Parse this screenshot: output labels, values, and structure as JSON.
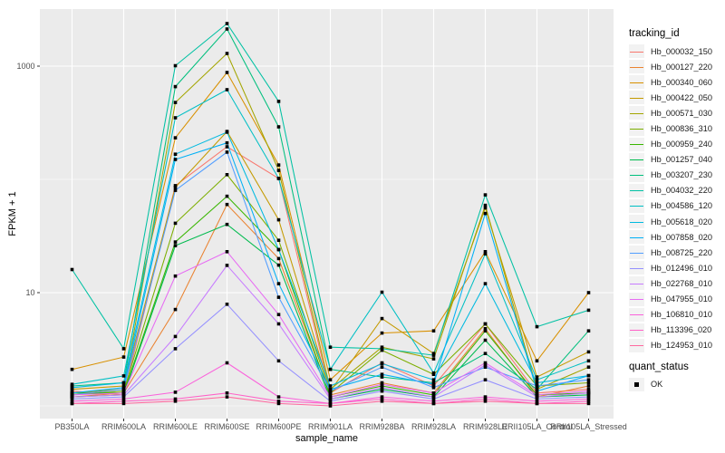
{
  "chart_data": {
    "type": "line",
    "xlabel": "sample_name",
    "ylabel": "FPKM + 1",
    "y_scale": "log10",
    "y_breaks": [
      {
        "label": "1000",
        "value": 1000
      },
      {
        "label": "10",
        "value": 10
      }
    ],
    "y_minor_breaks": [
      100,
      1
    ],
    "ylim": [
      0.77,
      3200
    ],
    "grid": true,
    "legend_position": "right",
    "categories": [
      "PB350LA",
      "RRIM600LA",
      "RRIM600LE",
      "RRIM600SE",
      "RRIM600PE",
      "RRIM901LA",
      "RRIM928BA",
      "RRIM928LA",
      "RRIM928LE",
      "RRII105LA_Control",
      "RRII105LA_Stressed"
    ],
    "series": [
      {
        "name": "Hb_000032_150",
        "color": "#F8766D",
        "values": [
          1.35,
          1.25,
          88,
          194,
          102,
          1.3,
          2.4,
          1.5,
          5.3,
          1.3,
          1.4
        ]
      },
      {
        "name": "Hb_000127_220",
        "color": "#EA8331",
        "values": [
          1.2,
          1.3,
          7.1,
          60,
          20,
          1.25,
          1.6,
          1.3,
          4.8,
          1.2,
          1.5
        ]
      },
      {
        "name": "Hb_000340_060",
        "color": "#D89000",
        "values": [
          2.1,
          2.7,
          233,
          879,
          134,
          1.7,
          4.4,
          4.6,
          23,
          2.5,
          10.0
        ]
      },
      {
        "name": "Hb_000422_050",
        "color": "#C49A00",
        "values": [
          1.4,
          1.5,
          85,
          265,
          44,
          1.35,
          5.9,
          2.9,
          56,
          1.8,
          3.0
        ]
      },
      {
        "name": "Hb_000571_030",
        "color": "#A3A500",
        "values": [
          1.3,
          1.4,
          478,
          1294,
          120,
          1.4,
          3.3,
          2.6,
          59,
          1.4,
          2.2
        ]
      },
      {
        "name": "Hb_000836_310",
        "color": "#7CAE00",
        "values": [
          1.25,
          1.35,
          41,
          110,
          29,
          1.3,
          3.1,
          1.9,
          5.3,
          1.5,
          1.6
        ]
      },
      {
        "name": "Hb_000959_240",
        "color": "#39B600",
        "values": [
          1.3,
          1.3,
          28,
          71,
          24,
          1.2,
          1.5,
          1.25,
          4.6,
          1.25,
          1.3
        ]
      },
      {
        "name": "Hb_001257_040",
        "color": "#00BB4E",
        "values": [
          1.2,
          1.25,
          26,
          40,
          17.5,
          1.15,
          1.4,
          1.2,
          3.8,
          1.2,
          1.25
        ]
      },
      {
        "name": "Hb_003207_230",
        "color": "#00BF7D",
        "values": [
          1.5,
          1.6,
          660,
          2128,
          291,
          2.1,
          1.8,
          1.6,
          2.9,
          1.4,
          4.6
        ]
      },
      {
        "name": "Hb_004032_220",
        "color": "#00C1A3",
        "values": [
          16.0,
          3.2,
          1010,
          2377,
          488,
          3.3,
          3.2,
          2.8,
          73,
          5.0,
          7.0
        ]
      },
      {
        "name": "Hb_004586_120",
        "color": "#00BFC4",
        "values": [
          1.55,
          1.84,
          350,
          619,
          102,
          2.1,
          10.1,
          1.95,
          22,
          1.7,
          2.5
        ]
      },
      {
        "name": "Hb_005618_020",
        "color": "#00BAE0",
        "values": [
          1.45,
          1.6,
          167,
          261,
          24,
          1.5,
          2.36,
          1.7,
          12,
          1.6,
          1.85
        ]
      },
      {
        "name": "Hb_007858_020",
        "color": "#00B0F6",
        "values": [
          1.3,
          1.45,
          150,
          210,
          12,
          1.4,
          1.9,
          1.55,
          50,
          1.35,
          1.85
        ]
      },
      {
        "name": "Hb_008725_220",
        "color": "#529EFF",
        "values": [
          1.25,
          1.4,
          80,
          174,
          9.1,
          1.35,
          2.2,
          1.45,
          2.2,
          1.5,
          1.7
        ]
      },
      {
        "name": "Hb_012496_010",
        "color": "#9590FF",
        "values": [
          1.15,
          1.2,
          3.2,
          7.9,
          2.5,
          1.1,
          1.35,
          1.15,
          1.7,
          1.15,
          1.2
        ]
      },
      {
        "name": "Hb_022768_010",
        "color": "#C77CFF",
        "values": [
          1.2,
          1.25,
          4.1,
          17.4,
          5.3,
          1.15,
          1.45,
          1.2,
          2.3,
          1.2,
          1.3
        ]
      },
      {
        "name": "Hb_047955_010",
        "color": "#E76BF3",
        "values": [
          1.25,
          1.3,
          14,
          23,
          6.4,
          1.2,
          1.55,
          1.3,
          2.4,
          1.25,
          1.35
        ]
      },
      {
        "name": "Hb_106810_010",
        "color": "#FA62DB",
        "values": [
          1.1,
          1.15,
          1.32,
          2.4,
          1.2,
          1.05,
          1.2,
          1.1,
          1.2,
          1.1,
          1.15
        ]
      },
      {
        "name": "Hb_113396_020",
        "color": "#FF61C7",
        "values": [
          1.05,
          1.1,
          1.15,
          1.3,
          1.1,
          1.05,
          1.15,
          1.05,
          1.15,
          1.05,
          1.1
        ]
      },
      {
        "name": "Hb_124953_010",
        "color": "#FF689F",
        "values": [
          1.05,
          1.05,
          1.1,
          1.2,
          1.05,
          1.0,
          1.1,
          1.05,
          1.1,
          1.05,
          1.05
        ]
      }
    ],
    "legend": {
      "line_legend_title": "tracking_id",
      "point_legend_title": "quant_status",
      "point_legend_label": "OK"
    },
    "style": {
      "panel_bg": "#EBEBEB",
      "grid_color": "#FFFFFF",
      "axis_text_color": "#4D4D4D",
      "tick_color": "#333333",
      "point_color": "#000000",
      "legend_key_bg": "#F2F2F2"
    },
    "point_shape": "filled-square"
  }
}
